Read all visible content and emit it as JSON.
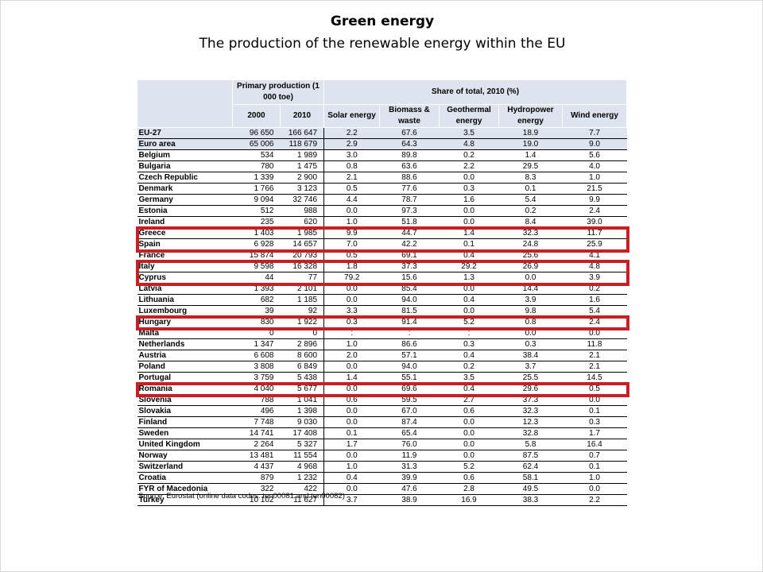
{
  "slide": {
    "title": "Green energy",
    "subtitle": "The production of the renewable energy within the EU"
  },
  "table": {
    "group_headers": {
      "primary": "Primary production (1 000 toe)",
      "share": "Share of total, 2010 (%)"
    },
    "year_headers": [
      "2000",
      "2010"
    ],
    "share_headers": [
      "Solar energy",
      "Biomass & waste",
      "Geothermal energy",
      "Hydropower energy",
      "Wind energy"
    ],
    "rows": [
      {
        "country": "EU-27",
        "p2000": "96 650",
        "p2010": "166 647",
        "solar": "2.2",
        "biomass": "67.6",
        "geothermal": "3.5",
        "hydro": "18.9",
        "wind": "7.7"
      },
      {
        "country": "Euro area",
        "p2000": "65 006",
        "p2010": "118 679",
        "solar": "2.9",
        "biomass": "64.3",
        "geothermal": "4.8",
        "hydro": "19.0",
        "wind": "9.0"
      },
      {
        "country": "Belgium",
        "p2000": "534",
        "p2010": "1 989",
        "solar": "3.0",
        "biomass": "89.8",
        "geothermal": "0.2",
        "hydro": "1.4",
        "wind": "5.6"
      },
      {
        "country": "Bulgaria",
        "p2000": "780",
        "p2010": "1 475",
        "solar": "0.8",
        "biomass": "63.6",
        "geothermal": "2.2",
        "hydro": "29.5",
        "wind": "4.0"
      },
      {
        "country": "Czech Republic",
        "p2000": "1 339",
        "p2010": "2 900",
        "solar": "2.1",
        "biomass": "88.6",
        "geothermal": "0.0",
        "hydro": "8.3",
        "wind": "1.0"
      },
      {
        "country": "Denmark",
        "p2000": "1 766",
        "p2010": "3 123",
        "solar": "0.5",
        "biomass": "77.6",
        "geothermal": "0.3",
        "hydro": "0.1",
        "wind": "21.5"
      },
      {
        "country": "Germany",
        "p2000": "9 094",
        "p2010": "32 746",
        "solar": "4.4",
        "biomass": "78.7",
        "geothermal": "1.6",
        "hydro": "5.4",
        "wind": "9.9"
      },
      {
        "country": "Estonia",
        "p2000": "512",
        "p2010": "988",
        "solar": "0.0",
        "biomass": "97.3",
        "geothermal": "0.0",
        "hydro": "0.2",
        "wind": "2.4"
      },
      {
        "country": "Ireland",
        "p2000": "235",
        "p2010": "620",
        "solar": "1.0",
        "biomass": "51.8",
        "geothermal": "0.0",
        "hydro": "8.4",
        "wind": "39.0"
      },
      {
        "country": "Greece",
        "p2000": "1 403",
        "p2010": "1 985",
        "solar": "9.9",
        "biomass": "44.7",
        "geothermal": "1.4",
        "hydro": "32.3",
        "wind": "11.7"
      },
      {
        "country": "Spain",
        "p2000": "6 928",
        "p2010": "14 657",
        "solar": "7.0",
        "biomass": "42.2",
        "geothermal": "0.1",
        "hydro": "24.8",
        "wind": "25.9"
      },
      {
        "country": "France",
        "p2000": "15 874",
        "p2010": "20 793",
        "solar": "0.5",
        "biomass": "69.1",
        "geothermal": "0.4",
        "hydro": "25.6",
        "wind": "4.1"
      },
      {
        "country": "Italy",
        "p2000": "9 598",
        "p2010": "16 328",
        "solar": "1.8",
        "biomass": "37.3",
        "geothermal": "29.2",
        "hydro": "26.9",
        "wind": "4.8"
      },
      {
        "country": "Cyprus",
        "p2000": "44",
        "p2010": "77",
        "solar": "79.2",
        "biomass": "15.6",
        "geothermal": "1.3",
        "hydro": "0.0",
        "wind": "3.9"
      },
      {
        "country": "Latvia",
        "p2000": "1 393",
        "p2010": "2 101",
        "solar": "0.0",
        "biomass": "85.4",
        "geothermal": "0.0",
        "hydro": "14.4",
        "wind": "0.2"
      },
      {
        "country": "Lithuania",
        "p2000": "682",
        "p2010": "1 185",
        "solar": "0.0",
        "biomass": "94.0",
        "geothermal": "0.4",
        "hydro": "3.9",
        "wind": "1.6"
      },
      {
        "country": "Luxembourg",
        "p2000": "39",
        "p2010": "92",
        "solar": "3.3",
        "biomass": "81.5",
        "geothermal": "0.0",
        "hydro": "9.8",
        "wind": "5.4"
      },
      {
        "country": "Hungary",
        "p2000": "830",
        "p2010": "1 922",
        "solar": "0.3",
        "biomass": "91.4",
        "geothermal": "5.2",
        "hydro": "0.8",
        "wind": "2.4"
      },
      {
        "country": "Malta",
        "p2000": "0",
        "p2010": "0",
        "solar": ":",
        "biomass": ":",
        "geothermal": ":",
        "hydro": "0.0",
        "wind": "0.0"
      },
      {
        "country": "Netherlands",
        "p2000": "1 347",
        "p2010": "2 896",
        "solar": "1.0",
        "biomass": "86.6",
        "geothermal": "0.3",
        "hydro": "0.3",
        "wind": "11.8"
      },
      {
        "country": "Austria",
        "p2000": "6 608",
        "p2010": "8 600",
        "solar": "2.0",
        "biomass": "57.1",
        "geothermal": "0.4",
        "hydro": "38.4",
        "wind": "2.1"
      },
      {
        "country": "Poland",
        "p2000": "3 808",
        "p2010": "6 849",
        "solar": "0.0",
        "biomass": "94.0",
        "geothermal": "0.2",
        "hydro": "3.7",
        "wind": "2.1"
      },
      {
        "country": "Portugal",
        "p2000": "3 759",
        "p2010": "5 438",
        "solar": "1.4",
        "biomass": "55.1",
        "geothermal": "3.5",
        "hydro": "25.5",
        "wind": "14.5"
      },
      {
        "country": "Romania",
        "p2000": "4 040",
        "p2010": "5 677",
        "solar": "0.0",
        "biomass": "69.6",
        "geothermal": "0.4",
        "hydro": "29.6",
        "wind": "0.5"
      },
      {
        "country": "Slovenia",
        "p2000": "788",
        "p2010": "1 041",
        "solar": "0.6",
        "biomass": "59.5",
        "geothermal": "2.7",
        "hydro": "37.3",
        "wind": "0.0"
      },
      {
        "country": "Slovakia",
        "p2000": "496",
        "p2010": "1 398",
        "solar": "0.0",
        "biomass": "67.0",
        "geothermal": "0.6",
        "hydro": "32.3",
        "wind": "0.1"
      },
      {
        "country": "Finland",
        "p2000": "7 748",
        "p2010": "9 030",
        "solar": "0.0",
        "biomass": "87.4",
        "geothermal": "0.0",
        "hydro": "12.3",
        "wind": "0.3"
      },
      {
        "country": "Sweden",
        "p2000": "14 741",
        "p2010": "17 408",
        "solar": "0.1",
        "biomass": "65.4",
        "geothermal": "0.0",
        "hydro": "32.8",
        "wind": "1.7"
      },
      {
        "country": "United Kingdom",
        "p2000": "2 264",
        "p2010": "5 327",
        "solar": "1.7",
        "biomass": "76.0",
        "geothermal": "0.0",
        "hydro": "5.8",
        "wind": "16.4"
      },
      {
        "country": "Norway",
        "p2000": "13 481",
        "p2010": "11 554",
        "solar": "0.0",
        "biomass": "11.9",
        "geothermal": "0.0",
        "hydro": "87.5",
        "wind": "0.7"
      },
      {
        "country": "Switzerland",
        "p2000": "4 437",
        "p2010": "4 968",
        "solar": "1.0",
        "biomass": "31.3",
        "geothermal": "5.2",
        "hydro": "62.4",
        "wind": "0.1"
      },
      {
        "country": "Croatia",
        "p2000": "879",
        "p2010": "1 232",
        "solar": "0.4",
        "biomass": "39.9",
        "geothermal": "0.6",
        "hydro": "58.1",
        "wind": "1.0"
      },
      {
        "country": "FYR of Macedonia",
        "p2000": "322",
        "p2010": "422",
        "solar": "0.0",
        "biomass": "47.6",
        "geothermal": "2.8",
        "hydro": "49.5",
        "wind": "0.0"
      },
      {
        "country": "Turkey",
        "p2000": "10 102",
        "p2010": "11 627",
        "solar": "3.7",
        "biomass": "38.9",
        "geothermal": "16.9",
        "hydro": "38.3",
        "wind": "2.2"
      }
    ],
    "source": "Source: Eurostat (online data codes: ten00081 and ten00082)"
  },
  "highlights": {
    "color": "#c81e24",
    "countries": [
      "Greece",
      "Spain",
      "Italy",
      "Cyprus",
      "Hungary",
      "Romania"
    ]
  },
  "colors": {
    "header_fill": "#dde4ef"
  }
}
